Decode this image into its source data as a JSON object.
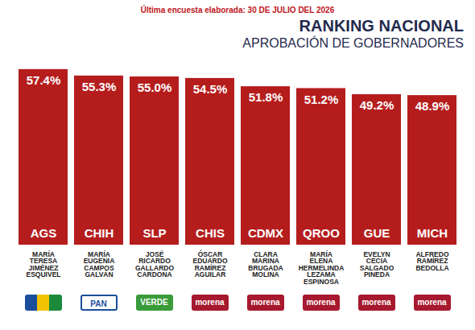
{
  "chart_data": {
    "type": "bar",
    "title": "RANKING NACIONAL",
    "subtitle": "APROBACIÓN DE GOBERNADORES",
    "annotations": [
      "Última encuesta elaborada: 30 DE JULIO DEL 2026"
    ],
    "categories": [
      "AGS",
      "CHIH",
      "SLP",
      "CHIS",
      "CDMX",
      "QROO",
      "GUE",
      "MICH"
    ],
    "values": [
      57.4,
      55.3,
      55.0,
      54.5,
      51.8,
      51.2,
      49.2,
      48.9
    ],
    "value_labels": [
      "57.4%",
      "55.3%",
      "55.0%",
      "54.5%",
      "51.8%",
      "51.2%",
      "49.2%",
      "48.9%"
    ],
    "names": [
      "MARÍA TERESA JIMÉNEZ ESQUIVEL",
      "MARÍA EUGENIA CAMPOS GALVÁN",
      "JOSÉ RICARDO GALLARDO CARDONA",
      "ÓSCAR EDUARDO RAMÍREZ AGUILAR",
      "CLARA MARINA BRUGADA MOLINA",
      "MARÍA ELENA HERMELINDA LEZAMA ESPINOSA",
      "EVELYN CECIA SALGADO PINEDA",
      "ALFREDO RAMÍREZ BEDOLLA"
    ],
    "parties": [
      null,
      "PAN",
      "VERDE",
      "morena",
      "morena",
      "morena",
      "morena",
      "morena"
    ],
    "color": "#b51d1d",
    "ylim": [
      0,
      60
    ],
    "yticks": [
      0,
      60
    ],
    "data_labels": true,
    "tick_labels": false,
    "grid": false
  }
}
